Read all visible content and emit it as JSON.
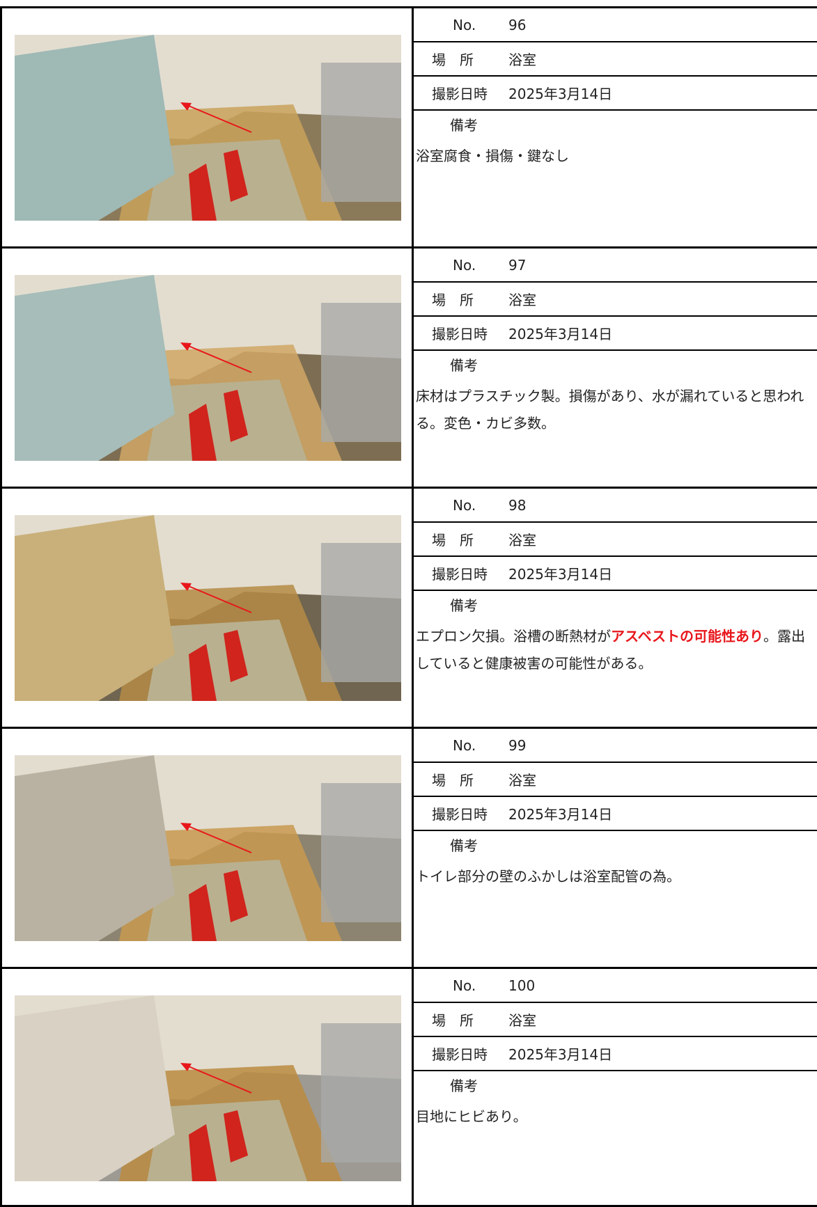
{
  "labels": {
    "no": "No.",
    "place": "場　所",
    "date": "撮影日時",
    "remarks": "備考"
  },
  "entries": [
    {
      "no": 96,
      "place": "浴室",
      "date": "2025年3月14日",
      "remarks": [
        "浴室腐食・損傷・鍵なし"
      ]
    },
    {
      "no": 97,
      "place": "浴室",
      "date": "2025年3月14日",
      "remarks": [
        "床材はプラスチック製。損傷があり、水が漏れていると思われる。変色・カビ多数。"
      ]
    },
    {
      "no": 98,
      "place": "浴室",
      "date": "2025年3月14日",
      "remarks": [
        "エプロン欠損。浴槽の断熱材が",
        {
          "text": "アスベストの可能性あり",
          "highlight": true
        },
        "。露出していると健康被害の可能性がある。"
      ]
    },
    {
      "no": 99,
      "place": "浴室",
      "date": "2025年3月14日",
      "remarks": [
        "トイレ部分の壁のふかしは浴室配管の為。"
      ]
    },
    {
      "no": 100,
      "place": "浴室",
      "date": "2025年3月14日",
      "remarks": [
        "目地にヒビあり。"
      ]
    }
  ]
}
